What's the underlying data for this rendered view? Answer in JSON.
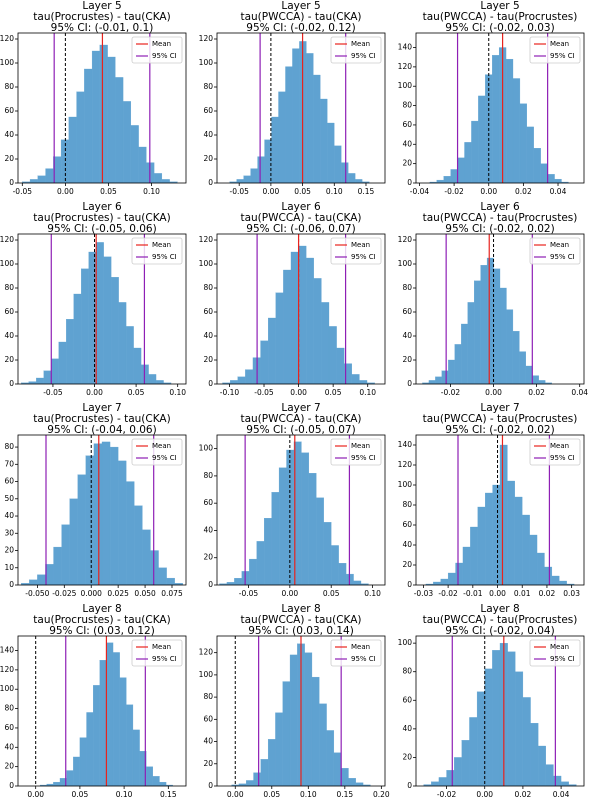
{
  "chart_data": [
    {
      "type": "histogram",
      "title": "Layer 5",
      "subtitle": "tau(Procrustes) - tau(CKA)",
      "annotation": "95% CI: (-0.01, 0.1)",
      "color": "#5fa2d1",
      "bins": [
        -0.05,
        -0.041,
        -0.032,
        -0.023,
        -0.014,
        -0.005,
        0.004,
        0.013,
        0.022,
        0.031,
        0.04,
        0.049,
        0.058,
        0.067,
        0.076,
        0.085,
        0.094,
        0.103,
        0.112,
        0.121,
        0.13
      ],
      "counts": [
        1,
        3,
        6,
        12,
        22,
        36,
        55,
        76,
        95,
        110,
        115,
        105,
        88,
        68,
        48,
        30,
        17,
        8,
        3,
        1
      ],
      "xlim": [
        -0.055,
        0.14
      ],
      "xticks": [
        -0.05,
        {
          "value": 0,
          "label": "0.00"
        },
        0.05,
        {
          "value": 0.1,
          "label": "0.10"
        }
      ],
      "ylim": [
        0,
        125
      ],
      "yticks": [
        0,
        20,
        40,
        60,
        80,
        100,
        120
      ],
      "mean": {
        "name": "Mean",
        "color": "#e8231e",
        "value": 0.043
      },
      "ci": {
        "name": "95% CI",
        "color": "#8e1fb5",
        "values": [
          -0.013,
          0.098
        ]
      },
      "reference": {
        "value": 0,
        "color": "#000000",
        "dashed": true
      },
      "legend": "upper right"
    },
    {
      "type": "histogram",
      "title": "Layer 5",
      "subtitle": "tau(PWCCA) - tau(CKA)",
      "annotation": "95% CI: (-0.02, 0.12)",
      "color": "#5fa2d1",
      "bins": [
        -0.065,
        -0.054,
        -0.043,
        -0.032,
        -0.021,
        -0.01,
        0.001,
        0.012,
        0.023,
        0.034,
        0.045,
        0.056,
        0.067,
        0.078,
        0.089,
        0.1,
        0.111,
        0.122,
        0.133,
        0.144,
        0.155
      ],
      "counts": [
        1,
        3,
        6,
        12,
        22,
        36,
        55,
        76,
        97,
        112,
        118,
        108,
        90,
        70,
        50,
        31,
        17,
        8,
        3,
        1
      ],
      "xlim": [
        -0.085,
        0.18
      ],
      "xticks": [
        -0.05,
        {
          "value": 0,
          "label": "0.00"
        },
        0.05,
        {
          "value": 0.1,
          "label": "0.10"
        },
        0.15
      ],
      "ylim": [
        0,
        125
      ],
      "yticks": [
        0,
        20,
        40,
        60,
        80,
        100,
        120
      ],
      "mean": {
        "name": "Mean",
        "color": "#e8231e",
        "value": 0.05
      },
      "ci": {
        "name": "95% CI",
        "color": "#8e1fb5",
        "values": [
          -0.017,
          0.118
        ]
      },
      "reference": {
        "value": 0,
        "color": "#000000",
        "dashed": true
      },
      "legend": "upper right"
    },
    {
      "type": "histogram",
      "title": "Layer 5",
      "subtitle": "tau(PWCCA) - tau(Procrustes)",
      "annotation": "95% CI: (-0.02, 0.03)",
      "color": "#5fa2d1",
      "bins": [
        -0.034,
        -0.03,
        -0.026,
        -0.022,
        -0.018,
        -0.014,
        -0.01,
        -0.006,
        -0.002,
        0.002,
        0.006,
        0.01,
        0.014,
        0.018,
        0.022,
        0.026,
        0.03,
        0.034,
        0.038,
        0.042,
        0.046
      ],
      "counts": [
        1,
        3,
        7,
        14,
        26,
        42,
        64,
        90,
        112,
        132,
        140,
        128,
        108,
        82,
        58,
        36,
        20,
        9,
        4,
        1
      ],
      "xlim": [
        -0.042,
        0.055
      ],
      "xticks": [
        -0.04,
        -0.02,
        {
          "value": 0,
          "label": "0.00"
        },
        0.02,
        0.04
      ],
      "ylim": [
        0,
        155
      ],
      "yticks": [
        0,
        20,
        40,
        60,
        80,
        100,
        120,
        140
      ],
      "mean": {
        "name": "Mean",
        "color": "#e8231e",
        "value": 0.008
      },
      "ci": {
        "name": "95% CI",
        "color": "#8e1fb5",
        "values": [
          -0.018,
          0.034
        ]
      },
      "reference": {
        "value": 0,
        "color": "#000000",
        "dashed": true
      },
      "legend": "upper right"
    },
    {
      "type": "histogram",
      "title": "Layer 6",
      "subtitle": "tau(Procrustes) - tau(CKA)",
      "annotation": "95% CI: (-0.05, 0.06)",
      "color": "#5fa2d1",
      "bins": [
        -0.088,
        -0.079,
        -0.07,
        -0.061,
        -0.052,
        -0.043,
        -0.034,
        -0.025,
        -0.016,
        -0.007,
        0.002,
        0.011,
        0.02,
        0.029,
        0.038,
        0.047,
        0.056,
        0.065,
        0.074,
        0.083,
        0.092
      ],
      "counts": [
        1,
        2,
        5,
        11,
        21,
        35,
        54,
        75,
        96,
        110,
        118,
        106,
        89,
        68,
        48,
        30,
        16,
        8,
        3,
        1
      ],
      "xlim": [
        -0.092,
        0.11
      ],
      "xticks": [
        -0.05,
        {
          "value": 0,
          "label": "0.00"
        },
        0.05,
        {
          "value": 0.1,
          "label": "0.10"
        }
      ],
      "ylim": [
        0,
        125
      ],
      "yticks": [
        0,
        20,
        40,
        60,
        80,
        100,
        120
      ],
      "mean": {
        "name": "Mean",
        "color": "#e8231e",
        "value": 0.002
      },
      "ci": {
        "name": "95% CI",
        "color": "#8e1fb5",
        "values": [
          -0.052,
          0.06
        ]
      },
      "reference": {
        "value": 0,
        "color": "#000000",
        "dashed": true
      },
      "legend": "upper right"
    },
    {
      "type": "histogram",
      "title": "Layer 6",
      "subtitle": "tau(PWCCA) - tau(CKA)",
      "annotation": "95% CI: (-0.06, 0.07)",
      "color": "#5fa2d1",
      "bins": [
        -0.11,
        -0.099,
        -0.088,
        -0.077,
        -0.066,
        -0.055,
        -0.044,
        -0.033,
        -0.022,
        -0.011,
        0,
        0.011,
        0.022,
        0.033,
        0.044,
        0.055,
        0.066,
        0.077,
        0.088,
        0.099,
        0.11
      ],
      "counts": [
        1,
        3,
        6,
        12,
        22,
        36,
        55,
        76,
        95,
        110,
        115,
        105,
        88,
        68,
        48,
        30,
        17,
        8,
        3,
        1
      ],
      "xlim": [
        -0.118,
        0.125
      ],
      "xticks": [
        {
          "value": -0.1,
          "label": "-0.10"
        },
        -0.05,
        {
          "value": 0,
          "label": "0.00"
        },
        0.05,
        {
          "value": 0.1,
          "label": "0.10"
        }
      ],
      "ylim": [
        0,
        125
      ],
      "yticks": [
        0,
        20,
        40,
        60,
        80,
        100,
        120
      ],
      "mean": {
        "name": "Mean",
        "color": "#e8231e",
        "value": 0.0
      },
      "ci": {
        "name": "95% CI",
        "color": "#8e1fb5",
        "values": [
          -0.06,
          0.068
        ]
      },
      "reference": {
        "value": 0,
        "color": "#000000",
        "dashed": true
      },
      "legend": "upper right"
    },
    {
      "type": "histogram",
      "title": "Layer 6",
      "subtitle": "tau(PWCCA) - tau(Procrustes)",
      "annotation": "95% CI: (-0.02, 0.02)",
      "color": "#5fa2d1",
      "bins": [
        -0.033,
        -0.03,
        -0.027,
        -0.024,
        -0.021,
        -0.018,
        -0.015,
        -0.012,
        -0.009,
        -0.006,
        -0.003,
        0,
        0.003,
        0.006,
        0.009,
        0.012,
        0.015,
        0.018,
        0.021,
        0.024,
        0.027
      ],
      "counts": [
        1,
        3,
        6,
        11,
        20,
        33,
        50,
        68,
        86,
        99,
        105,
        96,
        80,
        62,
        44,
        27,
        15,
        7,
        3,
        1
      ],
      "xlim": [
        -0.036,
        0.042
      ],
      "xticks": [
        -0.02,
        {
          "value": 0,
          "label": "0.00"
        },
        0.02,
        0.04
      ],
      "ylim": [
        0,
        125
      ],
      "yticks": [
        0,
        20,
        40,
        60,
        80,
        100,
        120
      ],
      "mean": {
        "name": "Mean",
        "color": "#e8231e",
        "value": -0.002
      },
      "ci": {
        "name": "95% CI",
        "color": "#8e1fb5",
        "values": [
          -0.022,
          0.018
        ]
      },
      "reference": {
        "value": 0,
        "color": "#000000",
        "dashed": true
      },
      "legend": "upper right"
    },
    {
      "type": "histogram",
      "title": "Layer 7",
      "subtitle": "tau(Procrustes) - tau(CKA)",
      "annotation": "95% CI: (-0.04, 0.06)",
      "color": "#5fa2d1",
      "bins": [
        -0.065,
        -0.0575,
        -0.05,
        -0.0425,
        -0.035,
        -0.0275,
        -0.02,
        -0.0125,
        -0.005,
        0.0025,
        0.01,
        0.0175,
        0.025,
        0.0325,
        0.04,
        0.0475,
        0.055,
        0.0625,
        0.07,
        0.0775,
        0.085
      ],
      "counts": [
        1,
        3,
        6,
        12,
        22,
        35,
        50,
        64,
        75,
        82,
        83,
        80,
        72,
        60,
        46,
        32,
        20,
        10,
        4,
        1
      ],
      "xlim": [
        -0.068,
        0.088
      ],
      "xticks": [
        {
          "value": -0.05,
          "label": "-0.050"
        },
        {
          "value": -0.025,
          "label": "-0.025"
        },
        {
          "value": 0,
          "label": "0.000"
        },
        0.025,
        {
          "value": 0.05,
          "label": "0.050"
        },
        0.075
      ],
      "ylim": [
        0,
        87
      ],
      "yticks": [
        0,
        10,
        20,
        30,
        40,
        50,
        60,
        70,
        80
      ],
      "mean": {
        "name": "Mean",
        "color": "#e8231e",
        "value": 0.007
      },
      "ci": {
        "name": "95% CI",
        "color": "#8e1fb5",
        "values": [
          -0.042,
          0.058
        ]
      },
      "reference": {
        "value": 0,
        "color": "#000000",
        "dashed": true
      },
      "legend": "upper right"
    },
    {
      "type": "histogram",
      "title": "Layer 7",
      "subtitle": "tau(PWCCA) - tau(CKA)",
      "annotation": "95% CI: (-0.05, 0.07)",
      "color": "#5fa2d1",
      "bins": [
        -0.085,
        -0.076,
        -0.067,
        -0.058,
        -0.049,
        -0.04,
        -0.031,
        -0.022,
        -0.013,
        -0.004,
        0.005,
        0.014,
        0.023,
        0.032,
        0.041,
        0.05,
        0.059,
        0.068,
        0.077,
        0.086,
        0.095
      ],
      "counts": [
        1,
        2,
        5,
        10,
        19,
        32,
        49,
        68,
        86,
        99,
        105,
        97,
        82,
        64,
        46,
        29,
        16,
        8,
        3,
        1
      ],
      "xlim": [
        -0.088,
        0.115
      ],
      "xticks": [
        -0.05,
        {
          "value": 0,
          "label": "0.00"
        },
        0.05,
        {
          "value": 0.1,
          "label": "0.10"
        }
      ],
      "ylim": [
        0,
        110
      ],
      "yticks": [
        0,
        20,
        40,
        60,
        80,
        100
      ],
      "mean": {
        "name": "Mean",
        "color": "#e8231e",
        "value": 0.006
      },
      "ci": {
        "name": "95% CI",
        "color": "#8e1fb5",
        "values": [
          -0.054,
          0.072
        ]
      },
      "reference": {
        "value": 0,
        "color": "#000000",
        "dashed": true
      },
      "legend": "upper right"
    },
    {
      "type": "histogram",
      "title": "Layer 7",
      "subtitle": "tau(PWCCA) - tau(Procrustes)",
      "annotation": "95% CI: (-0.02, 0.02)",
      "color": "#5fa2d1",
      "bins": [
        -0.029,
        -0.026,
        -0.023,
        -0.02,
        -0.017,
        -0.014,
        -0.011,
        -0.008,
        -0.005,
        -0.002,
        0.001,
        0.004,
        0.007,
        0.01,
        0.013,
        0.016,
        0.019,
        0.022,
        0.025,
        0.028,
        0.031
      ],
      "counts": [
        1,
        3,
        6,
        12,
        22,
        38,
        58,
        78,
        92,
        100,
        140,
        104,
        88,
        70,
        50,
        32,
        18,
        9,
        4,
        1
      ],
      "xlim": [
        -0.033,
        0.035
      ],
      "xticks": [
        -0.03,
        -0.02,
        -0.01,
        {
          "value": 0,
          "label": "0.00"
        },
        0.01,
        0.02,
        0.03
      ],
      "ylim": [
        0,
        150
      ],
      "yticks": [
        0,
        20,
        40,
        60,
        80,
        100,
        120,
        140
      ],
      "mean": {
        "name": "Mean",
        "color": "#e8231e",
        "value": 0.002
      },
      "ci": {
        "name": "95% CI",
        "color": "#8e1fb5",
        "values": [
          -0.016,
          0.021
        ]
      },
      "reference": {
        "value": 0,
        "color": "#000000",
        "dashed": true
      },
      "legend": "upper right"
    },
    {
      "type": "histogram",
      "title": "Layer 8",
      "subtitle": "tau(Procrustes) - tau(CKA)",
      "annotation": "95% CI: (0.03, 0.12)",
      "color": "#5fa2d1",
      "bins": [
        0.005,
        0.0125,
        0.02,
        0.0275,
        0.035,
        0.0425,
        0.05,
        0.0575,
        0.065,
        0.0725,
        0.08,
        0.0875,
        0.095,
        0.1025,
        0.11,
        0.1175,
        0.125,
        0.1325,
        0.14,
        0.1475,
        0.155
      ],
      "counts": [
        1,
        2,
        4,
        8,
        16,
        30,
        50,
        76,
        104,
        130,
        148,
        138,
        112,
        84,
        58,
        36,
        20,
        10,
        4,
        1
      ],
      "xlim": [
        -0.02,
        0.17
      ],
      "xticks": [
        {
          "value": 0,
          "label": "0.00"
        },
        0.05,
        {
          "value": 0.1,
          "label": "0.10"
        },
        0.15
      ],
      "ylim": [
        0,
        155
      ],
      "yticks": [
        0,
        20,
        40,
        60,
        80,
        100,
        120,
        140
      ],
      "mean": {
        "name": "Mean",
        "color": "#e8231e",
        "value": 0.08
      },
      "ci": {
        "name": "95% CI",
        "color": "#8e1fb5",
        "values": [
          0.034,
          0.124
        ]
      },
      "reference": {
        "value": 0,
        "color": "#000000",
        "dashed": true
      },
      "legend": "upper right"
    },
    {
      "type": "histogram",
      "title": "Layer 8",
      "subtitle": "tau(PWCCA) - tau(CKA)",
      "annotation": "95% CI: (0.03, 0.14)",
      "color": "#5fa2d1",
      "bins": [
        -0.015,
        -0.005,
        0.005,
        0.015,
        0.025,
        0.035,
        0.045,
        0.055,
        0.065,
        0.075,
        0.085,
        0.095,
        0.105,
        0.115,
        0.125,
        0.135,
        0.145,
        0.155,
        0.165,
        0.175,
        0.185
      ],
      "counts": [
        0,
        1,
        2,
        5,
        12,
        24,
        42,
        66,
        94,
        118,
        128,
        120,
        98,
        74,
        50,
        30,
        16,
        7,
        3,
        1
      ],
      "xlim": [
        -0.025,
        0.205
      ],
      "xticks": [
        {
          "value": 0,
          "label": "0.00"
        },
        0.05,
        {
          "value": 0.1,
          "label": "0.10"
        },
        0.15,
        {
          "value": 0.2,
          "label": "0.20"
        }
      ],
      "ylim": [
        0,
        135
      ],
      "yticks": [
        0,
        20,
        40,
        60,
        80,
        100,
        120
      ],
      "mean": {
        "name": "Mean",
        "color": "#e8231e",
        "value": 0.09
      },
      "ci": {
        "name": "95% CI",
        "color": "#8e1fb5",
        "values": [
          0.032,
          0.145
        ]
      },
      "reference": {
        "value": 0,
        "color": "#000000",
        "dashed": true
      },
      "legend": "upper right"
    },
    {
      "type": "histogram",
      "title": "Layer 8",
      "subtitle": "tau(PWCCA) - tau(Procrustes)",
      "annotation": "95% CI: (-0.02, 0.04)",
      "color": "#5fa2d1",
      "bins": [
        -0.032,
        -0.028,
        -0.024,
        -0.02,
        -0.016,
        -0.012,
        -0.008,
        -0.004,
        0,
        0.004,
        0.008,
        0.012,
        0.016,
        0.02,
        0.024,
        0.028,
        0.032,
        0.036,
        0.04,
        0.044,
        0.048
      ],
      "counts": [
        1,
        3,
        6,
        11,
        20,
        32,
        48,
        66,
        82,
        95,
        100,
        94,
        80,
        62,
        44,
        28,
        15,
        7,
        3,
        1
      ],
      "xlim": [
        -0.036,
        0.052
      ],
      "xticks": [
        -0.02,
        {
          "value": 0,
          "label": "0.00"
        },
        0.02,
        0.04
      ],
      "ylim": [
        0,
        105
      ],
      "yticks": [
        0,
        20,
        40,
        60,
        80,
        100
      ],
      "mean": {
        "name": "Mean",
        "color": "#e8231e",
        "value": 0.01
      },
      "ci": {
        "name": "95% CI",
        "color": "#8e1fb5",
        "values": [
          -0.017,
          0.037
        ]
      },
      "reference": {
        "value": 0,
        "color": "#000000",
        "dashed": true
      },
      "legend": "upper right"
    }
  ]
}
